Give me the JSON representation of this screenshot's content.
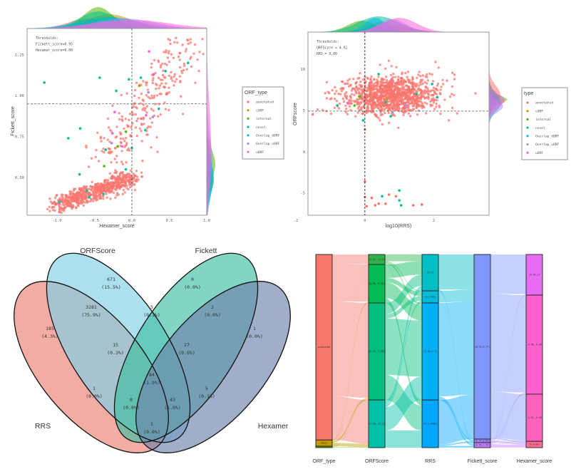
{
  "type_colors": {
    "annotated": "#F8766D",
    "cORF": "#C49A00",
    "internal": "#53B400",
    "novel": "#00C094",
    "Overlap_dORF": "#00B6EB",
    "Overlap_uORF": "#A58AFF",
    "uORF": "#FB61D7"
  },
  "chart_data": [
    {
      "id": "scatter_hexamer_fickett",
      "type": "scatter",
      "xlabel": "Hexamer_score",
      "ylabel": "Fickett_score",
      "xlim": [
        -1.4,
        1.0
      ],
      "ylim": [
        0.27,
        1.41
      ],
      "xticks": [
        "-1.0",
        "-0.5",
        "0.0",
        "0.5",
        "1.0"
      ],
      "xtick_values": [
        -1.0,
        -0.5,
        0.0,
        0.5,
        1.0
      ],
      "yticks": [
        "0.50",
        "0.75",
        "1.00",
        "1.25"
      ],
      "ytick_values": [
        0.5,
        0.75,
        1.0,
        1.25
      ],
      "thresholds_text": [
        "Thresholds:",
        "Fickett_score=0.95",
        "Hexamer_score=0.00"
      ],
      "threshold_x": 0.0,
      "threshold_y": 0.95,
      "legend_title": "ORF_type",
      "legend": [
        "annotated",
        "cORF",
        "internal",
        "novel",
        "Overlap_dORF",
        "Overlap_uORF",
        "uORF"
      ],
      "legend_placement": "right",
      "point_clouds": [
        {
          "type": "annotated",
          "n": 650,
          "from": [
            -1.0,
            0.33
          ],
          "to": [
            0.0,
            0.5
          ],
          "sd_x": 0.08,
          "sd_y": 0.025
        },
        {
          "type": "annotated",
          "n": 260,
          "from": [
            -0.3,
            0.6
          ],
          "to": [
            0.7,
            1.3
          ],
          "sd_x": 0.15,
          "sd_y": 0.07
        }
      ],
      "points": [
        {
          "x": -1.17,
          "y": 1.08,
          "type": "novel"
        },
        {
          "x": -0.43,
          "y": 1.11,
          "type": "novel"
        },
        {
          "x": -0.21,
          "y": 1.03,
          "type": "novel"
        },
        {
          "x": -0.04,
          "y": 1.1,
          "type": "novel"
        },
        {
          "x": 0.12,
          "y": 1.11,
          "type": "novel"
        },
        {
          "x": 0.45,
          "y": 1.15,
          "type": "novel"
        },
        {
          "x": 0.75,
          "y": 1.2,
          "type": "novel"
        },
        {
          "x": -0.69,
          "y": 0.8,
          "type": "novel"
        },
        {
          "x": -0.85,
          "y": 0.74,
          "type": "novel"
        },
        {
          "x": 0.36,
          "y": 0.92,
          "type": "novel"
        },
        {
          "x": 0.18,
          "y": 0.79,
          "type": "novel"
        },
        {
          "x": -0.35,
          "y": 0.67,
          "type": "novel"
        },
        {
          "x": -0.7,
          "y": 0.52,
          "type": "novel"
        },
        {
          "x": -0.6,
          "y": 0.42,
          "type": "novel"
        },
        {
          "x": -0.38,
          "y": 0.4,
          "type": "novel"
        },
        {
          "x": -0.08,
          "y": 0.55,
          "type": "novel"
        },
        {
          "x": -0.57,
          "y": 0.38,
          "type": "novel"
        },
        {
          "x": 0.0,
          "y": 0.68,
          "type": "novel"
        },
        {
          "x": 0.1,
          "y": 1.06,
          "type": "cORF"
        },
        {
          "x": -0.37,
          "y": 0.57,
          "type": "internal"
        },
        {
          "x": -0.19,
          "y": 0.69,
          "type": "internal"
        },
        {
          "x": -0.08,
          "y": 0.78,
          "type": "internal"
        },
        {
          "x": -0.97,
          "y": 0.35,
          "type": "Overlap_dORF"
        },
        {
          "x": 0.22,
          "y": 1.02,
          "type": "Overlap_uORF"
        },
        {
          "x": 0.28,
          "y": 0.87,
          "type": "Overlap_uORF"
        },
        {
          "x": -0.27,
          "y": 0.71,
          "type": "Overlap_uORF"
        },
        {
          "x": 0.23,
          "y": 1.27,
          "type": "uORF"
        },
        {
          "x": 0.29,
          "y": 1.13,
          "type": "uORF"
        },
        {
          "x": -0.23,
          "y": 0.9,
          "type": "uORF"
        },
        {
          "x": 0.19,
          "y": 0.88,
          "type": "uORF"
        },
        {
          "x": -0.26,
          "y": 0.77,
          "type": "uORF"
        },
        {
          "x": -0.13,
          "y": 0.69,
          "type": "uORF"
        }
      ]
    },
    {
      "id": "scatter_rrs_orfscore",
      "type": "scatter",
      "xlabel": "log10(RRS)",
      "ylabel": "ORFscore",
      "xlim": [
        -1.65,
        3.6
      ],
      "ylim": [
        -7.7,
        14.5
      ],
      "xticks": [
        "-2",
        "0",
        "2"
      ],
      "xtick_values": [
        -2,
        0,
        2
      ],
      "yticks": [
        "10",
        "5",
        "0",
        "-5"
      ],
      "ytick_values": [
        10,
        5,
        0,
        -5
      ],
      "thresholds_text": [
        "Thresholds:",
        "ORFScore = 4.92",
        "RRS = 0.00"
      ],
      "threshold_x": 0.0,
      "threshold_y": 4.92,
      "legend_title": "type",
      "legend": [
        "annotated",
        "cORF",
        "internal",
        "novel",
        "Overlap_dORF",
        "Overlap_uORF",
        "uORF"
      ],
      "legend_placement": "right",
      "point_clouds": [
        {
          "type": "annotated",
          "n": 1100,
          "from": [
            0.7,
            6.9
          ],
          "to": [
            0.7,
            6.9
          ],
          "sd_x": 0.65,
          "sd_y": 1.15
        },
        {
          "type": "annotated",
          "n": 60,
          "from": [
            -1.2,
            6.5
          ],
          "to": [
            2.8,
            8.0
          ],
          "sd_x": 0.3,
          "sd_y": 1.6
        }
      ],
      "points": [
        {
          "x": 0.6,
          "y": -6.3,
          "type": "annotated"
        },
        {
          "x": 0.3,
          "y": -6.5,
          "type": "annotated"
        },
        {
          "x": 0.7,
          "y": -5.2,
          "type": "annotated"
        },
        {
          "x": 0.9,
          "y": -5.4,
          "type": "annotated"
        },
        {
          "x": 1.4,
          "y": -6.5,
          "type": "annotated"
        },
        {
          "x": 1.65,
          "y": -6.4,
          "type": "annotated"
        },
        {
          "x": 0.4,
          "y": -6.3,
          "type": "annotated"
        },
        {
          "x": 0.2,
          "y": -5.6,
          "type": "annotated"
        },
        {
          "x": 0.05,
          "y": -6.6,
          "type": "annotated"
        },
        {
          "x": 0.0,
          "y": -3.6,
          "type": "annotated"
        },
        {
          "x": 0.0,
          "y": -5.5,
          "type": "annotated"
        },
        {
          "x": 0.0,
          "y": 2.7,
          "type": "annotated"
        },
        {
          "x": 1.0,
          "y": -4.7,
          "type": "novel"
        },
        {
          "x": 1.0,
          "y": -5.9,
          "type": "novel"
        },
        {
          "x": 1.05,
          "y": -6.5,
          "type": "novel"
        },
        {
          "x": 0.5,
          "y": -5.4,
          "type": "novel"
        },
        {
          "x": 0.4,
          "y": 9.4,
          "type": "novel"
        },
        {
          "x": 1.95,
          "y": 8.2,
          "type": "novel"
        },
        {
          "x": 2.1,
          "y": 6.6,
          "type": "novel"
        },
        {
          "x": -0.8,
          "y": 5.6,
          "type": "novel"
        },
        {
          "x": 0.75,
          "y": 4.3,
          "type": "novel"
        },
        {
          "x": 1.5,
          "y": 7.0,
          "type": "novel"
        },
        {
          "x": -0.05,
          "y": 3.8,
          "type": "novel"
        },
        {
          "x": 0.6,
          "y": 6.0,
          "type": "novel"
        },
        {
          "x": -0.3,
          "y": 5.6,
          "type": "internal"
        },
        {
          "x": -0.15,
          "y": 6.7,
          "type": "internal"
        },
        {
          "x": 0.65,
          "y": 6.4,
          "type": "cORF"
        },
        {
          "x": -0.5,
          "y": 5.9,
          "type": "uORF"
        },
        {
          "x": 1.2,
          "y": 5.6,
          "type": "Overlap_uORF"
        },
        {
          "x": 0.8,
          "y": 4.8,
          "type": "Overlap_uORF"
        }
      ]
    },
    {
      "id": "venn_four_sets",
      "type": "venn",
      "sets": [
        "RRS",
        "ORFScore",
        "Fickett",
        "Hexamer"
      ],
      "regions": [
        {
          "sets": "ORFScore",
          "count": "671",
          "pct": "(15.5%)"
        },
        {
          "sets": "Fickett",
          "count": "0",
          "pct": "(0.0%)"
        },
        {
          "sets": "RRS&ORFScore",
          "count": "3281",
          "pct": "(75.9%)"
        },
        {
          "sets": "ORFScore&Fickett",
          "count": "5",
          "pct": "(0.1%)"
        },
        {
          "sets": "Fickett&Hexamer",
          "count": "2",
          "pct": "(0.0%)"
        },
        {
          "sets": "RRS",
          "count": "185",
          "pct": "(4.3%)"
        },
        {
          "sets": "Hexamer",
          "count": "1",
          "pct": "(0.0%)"
        },
        {
          "sets": "RRS&ORFScore&Fickett",
          "count": "15",
          "pct": "(0.3%)"
        },
        {
          "sets": "ORFScore&Fickett&Hexamer",
          "count": "27",
          "pct": "(0.6%)"
        },
        {
          "sets": "RRS&ORFScore&Fickett&Hexamer",
          "count": "84",
          "pct": "(1.9%)"
        },
        {
          "sets": "RRS&Fickett",
          "count": "1",
          "pct": "(0.0%)"
        },
        {
          "sets": "ORFScore&Hexamer",
          "count": "5",
          "pct": "(0.1%)"
        },
        {
          "sets": "RRS&Fickett&Hexamer",
          "count": "0",
          "pct": "(0.0%)"
        },
        {
          "sets": "RRS&ORFScore&Hexamer",
          "count": "43",
          "pct": "(1.0%)"
        },
        {
          "sets": "RRS&Hexamer",
          "count": "1",
          "pct": "(0.0%)"
        }
      ]
    },
    {
      "id": "sankey_alluvial",
      "type": "sankey",
      "axes": [
        "ORF_type",
        "ORFScore",
        "RRS",
        "Fickett_score",
        "Hexamer_score"
      ],
      "nodes": [
        [
          {
            "label": "annotated",
            "color": "#F8766D"
          },
          {
            "label": "novel",
            "color": "#C49A00"
          },
          {
            "label": "",
            "color": "#53B400"
          }
        ],
        [
          {
            "label": "(9.82, 14.0]",
            "color": "#2FB34A"
          },
          {
            "label": "(8.60, 9.76]",
            "color": "#00BA52"
          },
          {
            "label": "(6.76, 7.68]",
            "color": "#00BE7D"
          },
          {
            "label": "(7.18, 13.3]",
            "color": "#00C1A8"
          }
        ],
        [
          {
            "label": "(0,1]",
            "color": "#00BFC4"
          },
          {
            "label": "(1,1.06]",
            "color": "#00BAD9"
          },
          {
            "label": "(1.06,4.1]",
            "color": "#00B0F6"
          },
          {
            "label": "(4.1,1000]",
            "color": "#00A6FF"
          }
        ],
        [
          {
            "label": "(0.31,0.74]",
            "color": "#7F96FF"
          },
          {
            "label": "(0.74,0.95]",
            "color": "#A58AFF"
          },
          {
            "label": "(0.95,1.35]",
            "color": "#C77CFF"
          }
        ],
        [
          {
            "label": "(0.46,1]",
            "color": "#E76BF3"
          },
          {
            "label": "(-0.58,-0.06]",
            "color": "#FD61D1"
          },
          {
            "label": "(-1.07,-0.58]",
            "color": "#FF62BC"
          },
          {
            "label": "(0,0.84]",
            "color": "#FF6C91"
          }
        ]
      ],
      "flows": [
        [
          [
            215,
            830,
            2110,
            975
          ],
          [
            5,
            20,
            40,
            75
          ],
          [
            2,
            7,
            10,
            11
          ]
        ],
        [
          [
            150,
            20,
            40,
            12
          ],
          [
            300,
            100,
            350,
            107
          ],
          [
            250,
            100,
            1250,
            560
          ],
          [
            110,
            50,
            520,
            381
          ]
        ],
        [
          [
            780,
            10,
            20
          ],
          [
            260,
            5,
            5
          ],
          [
            2080,
            35,
            45
          ],
          [
            990,
            30,
            40
          ]
        ],
        [
          [
            880,
            2170,
            1030,
            30
          ],
          [
            10,
            20,
            10,
            40
          ],
          [
            15,
            15,
            10,
            70
          ]
        ]
      ]
    }
  ]
}
